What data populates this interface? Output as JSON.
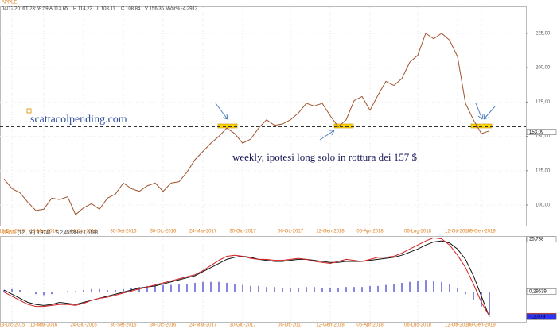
{
  "chart_data": [
    {
      "type": "line",
      "title": "APPLE",
      "subtitle": [
        "04/11/2016",
        "T 23:59:59",
        "A 113,65",
        "H 114,23",
        "L 108,11",
        "C 108,84",
        "V 156,35 M",
        "Var% -4,2912"
      ],
      "annotations": [
        "scattacolpending.com",
        "weekly, ipotesi long solo in rottura dei 157 $"
      ],
      "categories": [
        null,
        "18-Dic-2015",
        null,
        null,
        null,
        "16-Mar-2016",
        null,
        null,
        null,
        null,
        "24-Giu-2016",
        null,
        null,
        null,
        null,
        "30-Set-2016",
        null,
        null,
        null,
        null,
        "30-Dic-2016",
        null,
        null,
        null,
        null,
        "24-Mar-2017",
        null,
        null,
        null,
        null,
        "30-Giu-2017",
        null,
        null,
        null,
        null,
        null,
        "06-Ott-2017",
        null,
        null,
        null,
        null,
        "12-Gen-2018",
        null,
        null,
        null,
        null,
        "06-Apr-2018",
        null,
        null,
        null,
        null,
        null,
        "06-Lug-2018",
        null,
        null,
        null,
        null,
        "12-Ott-2018",
        null,
        null,
        "09-Gen-2019",
        null
      ],
      "series": [
        {
          "name": "APPLE",
          "color": "#a0522d",
          "values": [
            119,
            112,
            109,
            102,
            96,
            97,
            105,
            104,
            106,
            93,
            98,
            101,
            97,
            105,
            108,
            116,
            112,
            110,
            114,
            116,
            110,
            116,
            117,
            124,
            133,
            139,
            145,
            150,
            156,
            152,
            145,
            148,
            156,
            162,
            158,
            159,
            162,
            167,
            174,
            172,
            174,
            165,
            157,
            162,
            176,
            179,
            169,
            180,
            190,
            187,
            192,
            204,
            209,
            225,
            221,
            225,
            220,
            208,
            174,
            162,
            152,
            154
          ]
        }
      ],
      "ylim": [
        85,
        244
      ],
      "yticks": [
        {
          "value": 100,
          "label": "100,00"
        },
        {
          "value": 125,
          "label": "125,00"
        },
        {
          "value": 150,
          "label": "150,00"
        },
        {
          "value": 175,
          "label": "175,00"
        },
        {
          "value": 200,
          "label": "200,00"
        },
        {
          "value": 225,
          "label": "225,00"
        }
      ],
      "value_markers": [
        {
          "value": 153.09,
          "label": "153,09",
          "color": "#ffffff"
        }
      ],
      "hline": 157,
      "grid": true
    },
    {
      "type": "line",
      "title": "MACD",
      "subtitle": [
        "(12 , 50)",
        "3,9741",
        "S 2,4553",
        "Hst 1,5188"
      ],
      "categories": [
        null,
        "18-Dic-2015",
        null,
        null,
        null,
        "16-Mar-2016",
        null,
        null,
        null,
        null,
        "24-Giu-2016",
        null,
        null,
        null,
        null,
        "30-Set-2016",
        null,
        null,
        null,
        null,
        "30-Dic-2016",
        null,
        null,
        null,
        null,
        "24-Mar-2017",
        null,
        null,
        null,
        null,
        "30-Giu-2017",
        null,
        null,
        null,
        null,
        null,
        "06-Ott-2017",
        null,
        null,
        null,
        null,
        "12-Gen-2018",
        null,
        null,
        null,
        null,
        "06-Apr-2018",
        null,
        null,
        null,
        null,
        null,
        "06-Lug-2018",
        null,
        null,
        null,
        null,
        "12-Ott-2018",
        null,
        null,
        "09-Gen-2019",
        null
      ],
      "series": [
        {
          "name": "Hst",
          "type": "bar",
          "color": "#3535c8",
          "values": [
            1,
            1.5,
            1,
            0,
            -1,
            -1.5,
            -1,
            0,
            0.5,
            0.5,
            1,
            1.5,
            1.5,
            1,
            1,
            1.5,
            2,
            2.5,
            3,
            3,
            3.5,
            3.5,
            4,
            4,
            4.5,
            5,
            5,
            5,
            4.5,
            4,
            3.5,
            3,
            3,
            2.5,
            2.5,
            2,
            2,
            2,
            2.5,
            2.5,
            2,
            2,
            2,
            2.5,
            2.5,
            2.5,
            3,
            3,
            3.5,
            4,
            4.5,
            5,
            5.5,
            6,
            5.5,
            5,
            4,
            2,
            -1,
            -4,
            -7,
            -11
          ]
        },
        {
          "name": "MACD",
          "color": "#111111",
          "values": [
            1,
            -1,
            -3,
            -5,
            -6,
            -6.5,
            -6,
            -5,
            -5.5,
            -6,
            -5,
            -4,
            -3,
            -2,
            -1,
            0,
            1,
            2,
            2.5,
            3,
            4,
            5,
            6,
            7,
            8,
            10,
            12,
            14,
            16,
            17,
            17.5,
            17,
            16,
            15.5,
            15,
            15,
            15.5,
            16,
            16,
            15.5,
            15,
            14.5,
            14.5,
            15,
            15,
            15,
            15.5,
            16,
            16.5,
            17,
            18,
            19.5,
            21,
            23,
            24.5,
            25,
            24,
            21,
            16,
            8,
            -2,
            -12.079
          ]
        },
        {
          "name": "S",
          "color": "#d42020",
          "values": [
            0,
            -2,
            -4,
            -6,
            -7,
            -7,
            -6.5,
            -6,
            -6,
            -6.5,
            -5.5,
            -4,
            -3,
            -2.5,
            -1.5,
            -0.5,
            0.5,
            1.5,
            2.5,
            3.5,
            4.5,
            5.5,
            6.5,
            7.5,
            8.5,
            10.5,
            13,
            15.5,
            17.5,
            18,
            17.5,
            16.5,
            16,
            16,
            15.5,
            15.5,
            16,
            16.5,
            16,
            15,
            14.5,
            14,
            15,
            16,
            15.5,
            15,
            16,
            17,
            17,
            17.5,
            19,
            21,
            23,
            25,
            26.5,
            26,
            23,
            18,
            12,
            4,
            -5,
            -11.674
          ]
        }
      ],
      "ylim": [
        -14.5,
        27
      ],
      "value_markers": [
        {
          "value": 25.788,
          "label": "25,788",
          "color": "#ffffff"
        },
        {
          "value": 0.29539,
          "label": "0,29539",
          "color": "#ffffff"
        },
        {
          "value": -11.674,
          "label": "-11,674",
          "color": "#ff3030"
        },
        {
          "value": -12.079,
          "label": "-12,079",
          "color": "#3030ff"
        }
      ],
      "grid": true
    }
  ]
}
